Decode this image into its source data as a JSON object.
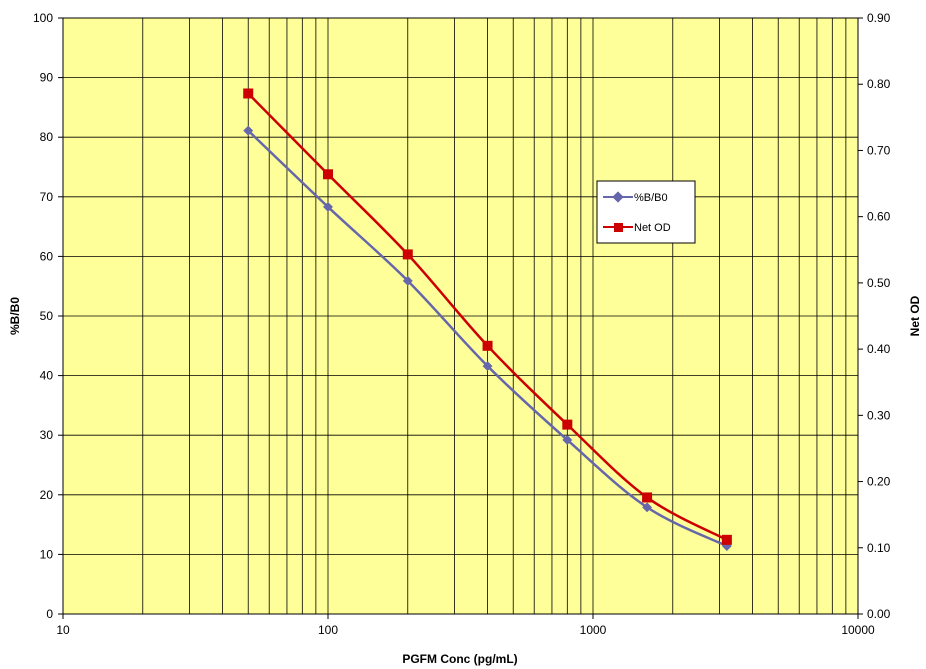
{
  "chart_data": {
    "type": "line",
    "xlabel": "PGFM Conc (pg/mL)",
    "ylabel": "%B/B0",
    "y2label": "Net OD",
    "x_scale": "log",
    "xlim": [
      10,
      10000
    ],
    "ylim": [
      0,
      100
    ],
    "y2lim": [
      0.0,
      0.9
    ],
    "x_ticks": [
      10,
      100,
      1000,
      10000
    ],
    "x_tick_labels": [
      "10",
      "100",
      "1000",
      "10000"
    ],
    "y_ticks": [
      0,
      10,
      20,
      30,
      40,
      50,
      60,
      70,
      80,
      90,
      100
    ],
    "y_tick_labels": [
      "0",
      "10",
      "20",
      "30",
      "40",
      "50",
      "60",
      "70",
      "80",
      "90",
      "100"
    ],
    "y2_ticks": [
      0.0,
      0.1,
      0.2,
      0.3,
      0.4,
      0.5,
      0.6,
      0.7,
      0.8,
      0.9
    ],
    "y2_tick_labels": [
      "0.00",
      "0.10",
      "0.20",
      "0.30",
      "0.40",
      "0.50",
      "0.60",
      "0.70",
      "0.80",
      "0.90"
    ],
    "grid": true,
    "background_color": "#FFFF99",
    "legend_position": "right-inside",
    "series": [
      {
        "name": "%B/B0",
        "axis": "left",
        "color": "#6666AA",
        "marker": "diamond",
        "x": [
          50,
          100,
          200,
          400,
          800,
          1600,
          3200
        ],
        "y": [
          81.1,
          68.3,
          55.9,
          41.6,
          29.2,
          17.9,
          11.4
        ]
      },
      {
        "name": "Net OD",
        "axis": "right",
        "color": "#CC0000",
        "marker": "square",
        "x": [
          50,
          100,
          200,
          400,
          800,
          1600,
          3200
        ],
        "y": [
          0.786,
          0.664,
          0.543,
          0.405,
          0.286,
          0.176,
          0.112
        ]
      }
    ]
  }
}
